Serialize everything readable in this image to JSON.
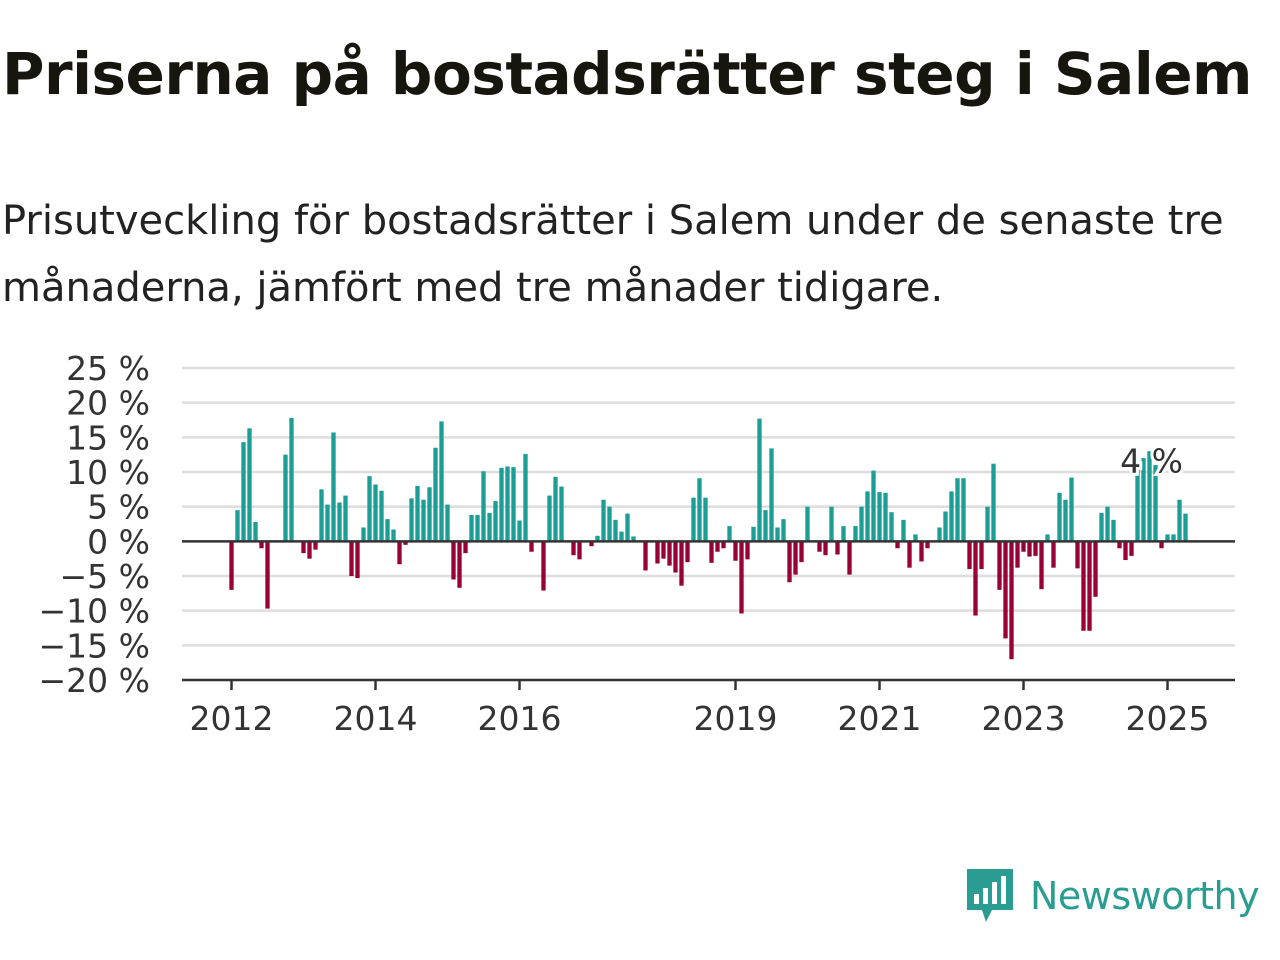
{
  "header": {
    "title": "Priserna på bostadsrätter steg i Salem",
    "subtitle": "Prisutveckling för bostadsrätter i Salem under de senaste tre månaderna, jämfört med tre månader tidigare."
  },
  "brand": {
    "name": "Newsworthy",
    "icon": "newsworthy-logo-icon",
    "color": "#2a9d92"
  },
  "colors": {
    "positive": "#1a9e96",
    "negative": "#990036",
    "grid": "#dddddd",
    "zero_line": "#333333"
  },
  "chart_data": {
    "type": "bar",
    "title": "Priserna på bostadsrätter steg i Salem",
    "xlabel": "",
    "ylabel": "",
    "ylim": [
      -20,
      25
    ],
    "y_ticks": [
      25,
      20,
      15,
      10,
      5,
      0,
      -5,
      -10,
      -15,
      -20
    ],
    "y_tick_labels": [
      "25 %",
      "20 %",
      "15 %",
      "10 %",
      "5 %",
      "0 %",
      "−5 %",
      "−10 %",
      "−15 %",
      "−20 %"
    ],
    "x_ticks": [
      2012,
      2014,
      2016,
      2019,
      2021,
      2023,
      2025
    ],
    "x_start": "2012-01",
    "grid": true,
    "legend": "none",
    "annotation": {
      "text": "4 %",
      "at": "2025-04"
    },
    "values": [
      -7,
      4.5,
      14.3,
      16.3,
      2.8,
      -1,
      -9.7,
      0,
      0,
      12.5,
      17.8,
      0,
      -1.7,
      -2.5,
      -1.2,
      7.5,
      5.3,
      15.7,
      5.6,
      6.6,
      -5,
      -5.3,
      2,
      9.4,
      8.2,
      7.3,
      3.2,
      1.7,
      -3.3,
      -0.5,
      6.2,
      8,
      6,
      7.8,
      13.5,
      17.3,
      5.3,
      -5.5,
      -6.7,
      -1.7,
      3.8,
      3.8,
      10.1,
      4.1,
      5.8,
      10.6,
      10.8,
      10.7,
      3,
      12.6,
      -1.5,
      0,
      -7.1,
      6.6,
      9.3,
      7.9,
      0,
      -2,
      -2.6,
      0,
      -0.7,
      0.8,
      6,
      5,
      3.1,
      1.4,
      4,
      0.7,
      0,
      -4.2,
      0,
      -3.2,
      -2.5,
      -3.5,
      -4.5,
      -6.4,
      -3,
      6.3,
      9.1,
      6.3,
      -3.1,
      -1.5,
      -1,
      2.2,
      -2.8,
      -10.4,
      -2.6,
      2.1,
      17.7,
      4.5,
      13.4,
      2,
      3.2,
      -5.9,
      -4.8,
      -3,
      5,
      0,
      -1.5,
      -2,
      5,
      -1.9,
      2.2,
      -4.8,
      2.2,
      5,
      7.2,
      10.2,
      7.1,
      7,
      4.2,
      -1,
      3.1,
      -3.8,
      1,
      -2.9,
      -1,
      0,
      2,
      4.3,
      7.2,
      9.1,
      9.1,
      -4,
      -10.7,
      -4,
      5,
      11.2,
      -7,
      -14,
      -17,
      -3.8,
      -1.5,
      -2.2,
      -2.1,
      -6.9,
      1,
      -3.8,
      7,
      6,
      9.2,
      -3.9,
      -12.9,
      -12.9,
      -8,
      4.1,
      5,
      3.1,
      -1,
      -2.7,
      -2.1,
      11.2,
      12,
      13,
      11,
      -1,
      1,
      1,
      6,
      4
    ]
  }
}
